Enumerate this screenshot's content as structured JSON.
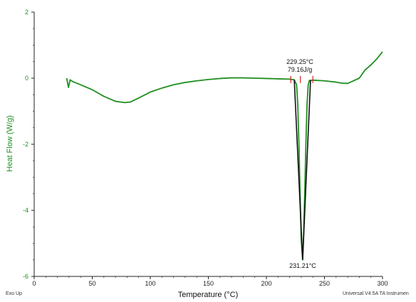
{
  "colors": {
    "curve": "#1f8f1f",
    "ylabel": "#1f8f1f",
    "axis": "#222222",
    "markers": "#d62020",
    "peak": "#111111"
  },
  "chart_data": {
    "type": "line",
    "xlabel": "Temperature (°C)",
    "ylabel": "Heat Flow (W/g)",
    "xlim": [
      0,
      300
    ],
    "ylim": [
      -6,
      2
    ],
    "x_ticks": [
      0,
      50,
      100,
      150,
      200,
      250,
      300
    ],
    "y_ticks": [
      -6,
      -4,
      -2,
      0,
      2
    ],
    "grid": false,
    "series": [
      {
        "points": [
          [
            28,
            0.0
          ],
          [
            29.5,
            -0.28
          ],
          [
            31,
            -0.05
          ],
          [
            33,
            -0.1
          ],
          [
            40,
            -0.2
          ],
          [
            50,
            -0.35
          ],
          [
            60,
            -0.55
          ],
          [
            70,
            -0.7
          ],
          [
            78,
            -0.74
          ],
          [
            83,
            -0.72
          ],
          [
            90,
            -0.6
          ],
          [
            100,
            -0.42
          ],
          [
            110,
            -0.3
          ],
          [
            120,
            -0.2
          ],
          [
            130,
            -0.13
          ],
          [
            140,
            -0.08
          ],
          [
            150,
            -0.04
          ],
          [
            160,
            -0.01
          ],
          [
            170,
            0.01
          ],
          [
            180,
            0.01
          ],
          [
            190,
            0.0
          ],
          [
            200,
            -0.01
          ],
          [
            210,
            -0.02
          ],
          [
            220,
            -0.03
          ],
          [
            224,
            -0.05
          ],
          [
            226,
            -0.2
          ],
          [
            227,
            -0.8
          ],
          [
            228,
            -2.0
          ],
          [
            229,
            -3.5
          ],
          [
            230,
            -4.9
          ],
          [
            231.21,
            -5.5
          ],
          [
            232,
            -4.8
          ],
          [
            233,
            -3.5
          ],
          [
            234,
            -2.0
          ],
          [
            235,
            -0.8
          ],
          [
            236,
            -0.2
          ],
          [
            237,
            -0.07
          ],
          [
            240,
            -0.06
          ],
          [
            250,
            -0.08
          ],
          [
            260,
            -0.12
          ],
          [
            265,
            -0.15
          ],
          [
            270,
            -0.16
          ],
          [
            275,
            -0.08
          ],
          [
            280,
            0.0
          ],
          [
            283,
            0.15
          ],
          [
            285,
            0.25
          ],
          [
            290,
            0.4
          ],
          [
            295,
            0.58
          ],
          [
            300,
            0.8
          ]
        ]
      }
    ],
    "peak_region": {
      "x": [
        224,
        231.21,
        238
      ],
      "y": [
        -0.05,
        -5.5,
        -0.06
      ]
    },
    "baseline_markers": [
      221,
      229.25,
      240
    ],
    "annotations": {
      "onset_temp": "229.25°C",
      "enthalpy": "79.16J/g",
      "peak_temp": "231.21°C"
    }
  },
  "footer": {
    "left": "Exo Up",
    "right": "Universal V4.5A TA Instrumen"
  }
}
